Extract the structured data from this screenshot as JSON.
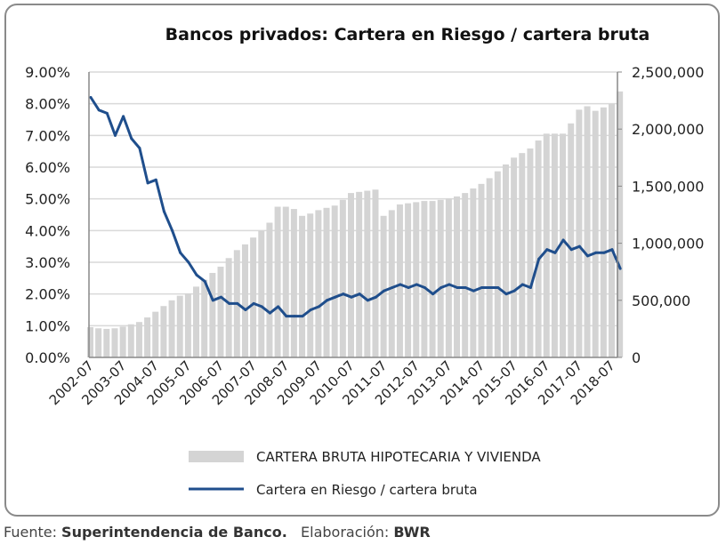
{
  "chart_data": {
    "type": "bar+line",
    "title": "Bancos privados: Cartera en Riesgo / cartera bruta",
    "x": [
      "2002-07",
      "2002-10",
      "2003-01",
      "2003-04",
      "2003-07",
      "2003-10",
      "2004-01",
      "2004-04",
      "2004-07",
      "2004-10",
      "2005-01",
      "2005-04",
      "2005-07",
      "2005-10",
      "2006-01",
      "2006-04",
      "2006-07",
      "2006-10",
      "2007-01",
      "2007-04",
      "2007-07",
      "2007-10",
      "2008-01",
      "2008-04",
      "2008-07",
      "2008-10",
      "2009-01",
      "2009-04",
      "2009-07",
      "2009-10",
      "2010-01",
      "2010-04",
      "2010-07",
      "2010-10",
      "2011-01",
      "2011-04",
      "2011-07",
      "2011-10",
      "2012-01",
      "2012-04",
      "2012-07",
      "2012-10",
      "2013-01",
      "2013-04",
      "2013-07",
      "2013-10",
      "2014-01",
      "2014-04",
      "2014-07",
      "2014-10",
      "2015-01",
      "2015-04",
      "2015-07",
      "2015-10",
      "2016-01",
      "2016-04",
      "2016-07",
      "2016-10",
      "2017-01",
      "2017-04",
      "2017-07",
      "2017-10",
      "2018-01",
      "2018-04",
      "2018-07",
      "2018-10"
    ],
    "x_tick_labels": [
      "2002-07",
      "2003-07",
      "2004-07",
      "2005-07",
      "2006-07",
      "2007-07",
      "2008-07",
      "2009-07",
      "2010-07",
      "2011-07",
      "2012-07",
      "2013-07",
      "2014-07",
      "2015-07",
      "2016-07",
      "2017-07",
      "2018-07"
    ],
    "y_left": {
      "ticks": [
        "0.00%",
        "1.00%",
        "2.00%",
        "3.00%",
        "4.00%",
        "5.00%",
        "6.00%",
        "7.00%",
        "8.00%",
        "9.00%"
      ],
      "range": [
        0,
        9
      ]
    },
    "y_right": {
      "ticks": [
        "0",
        "500,000",
        "1,000,000",
        "1,500,000",
        "2,000,000",
        "2,500,000"
      ],
      "range": [
        0,
        2500000
      ]
    },
    "grid": true,
    "legend_position": "bottom",
    "series": [
      {
        "name": "CARTERA BRUTA HIPOTECARIA Y VIVIENDA",
        "type": "bar",
        "axis": "right",
        "color": "#d4d4d4",
        "values": [
          265000,
          255000,
          250000,
          255000,
          270000,
          290000,
          310000,
          350000,
          400000,
          450000,
          500000,
          540000,
          560000,
          620000,
          680000,
          740000,
          795000,
          870000,
          940000,
          990000,
          1050000,
          1110000,
          1180000,
          1320000,
          1320000,
          1300000,
          1240000,
          1260000,
          1290000,
          1310000,
          1330000,
          1380000,
          1440000,
          1450000,
          1460000,
          1470000,
          1240000,
          1290000,
          1340000,
          1350000,
          1360000,
          1370000,
          1370000,
          1380000,
          1390000,
          1410000,
          1440000,
          1480000,
          1520000,
          1570000,
          1630000,
          1690000,
          1750000,
          1790000,
          1830000,
          1900000,
          1960000,
          1960000,
          1960000,
          2050000,
          2170000,
          2200000,
          2160000,
          2190000,
          2220000,
          2330000
        ]
      },
      {
        "name": "Cartera en Riesgo / cartera bruta",
        "type": "line",
        "axis": "left",
        "color": "#1f4e8c",
        "values": [
          8.2,
          7.8,
          7.7,
          7.0,
          7.6,
          6.9,
          6.6,
          5.5,
          5.6,
          4.6,
          4.0,
          3.3,
          3.0,
          2.6,
          2.4,
          1.8,
          1.9,
          1.7,
          1.7,
          1.5,
          1.7,
          1.6,
          1.4,
          1.6,
          1.3,
          1.3,
          1.3,
          1.5,
          1.6,
          1.8,
          1.9,
          2.0,
          1.9,
          2.0,
          1.8,
          1.9,
          2.1,
          2.2,
          2.3,
          2.2,
          2.3,
          2.2,
          2.0,
          2.2,
          2.3,
          2.2,
          2.2,
          2.1,
          2.2,
          2.2,
          2.2,
          2.0,
          2.1,
          2.3,
          2.2,
          3.1,
          3.4,
          3.3,
          3.7,
          3.4,
          3.5,
          3.2,
          3.3,
          3.3,
          3.4,
          2.8
        ]
      }
    ]
  },
  "footer": {
    "source_label": "Fuente: ",
    "source": "Superintendencia de Banco.",
    "author_label": "Elaboración: ",
    "author": "BWR"
  }
}
